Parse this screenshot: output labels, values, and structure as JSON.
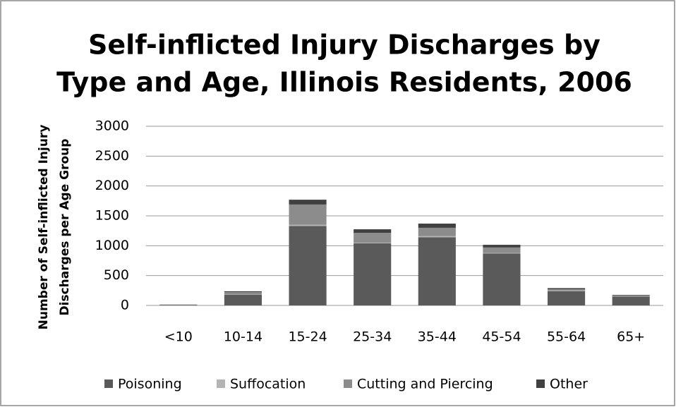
{
  "chart_data": {
    "type": "stacked_bar",
    "title": [
      "Self-inflicted Injury Discharges by",
      "Type and Age, Illinois Residents, 2006"
    ],
    "y_label": [
      "Number of Self-inflicted Injury",
      "Discharges per Age Group"
    ],
    "categories": [
      "<10",
      "10-14",
      "15-24",
      "25-34",
      "35-44",
      "45-54",
      "55-64",
      "65+"
    ],
    "series": [
      {
        "name": "Poisoning",
        "color": "#5a5a5a",
        "values": [
          10,
          177,
          1330,
          1040,
          1140,
          870,
          240,
          150
        ]
      },
      {
        "name": "Suffocation",
        "color": "#b4b4b4",
        "values": [
          0,
          5,
          20,
          10,
          20,
          10,
          10,
          5
        ]
      },
      {
        "name": "Cutting and Piercing",
        "color": "#8c8c8c",
        "values": [
          3,
          40,
          340,
          165,
          140,
          90,
          20,
          10
        ]
      },
      {
        "name": "Other",
        "color": "#404040",
        "values": [
          2,
          15,
          80,
          60,
          70,
          45,
          20,
          10
        ]
      }
    ],
    "ylim": [
      0,
      3000
    ],
    "yticks": [
      0,
      500,
      1000,
      1500,
      2000,
      2500,
      3000
    ],
    "grid": true,
    "legend": "bottom"
  }
}
